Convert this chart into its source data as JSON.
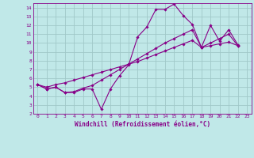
{
  "title": "",
  "xlabel": "Windchill (Refroidissement éolien,°C)",
  "ylabel": "",
  "bg_color": "#c0e8e8",
  "line_color": "#880088",
  "grid_color": "#a0c8c8",
  "xlim": [
    -0.5,
    23.5
  ],
  "ylim": [
    2,
    14.5
  ],
  "xticks": [
    0,
    1,
    2,
    3,
    4,
    5,
    6,
    7,
    8,
    9,
    10,
    11,
    12,
    13,
    14,
    15,
    16,
    17,
    18,
    19,
    20,
    21,
    22,
    23
  ],
  "yticks": [
    2,
    3,
    4,
    5,
    6,
    7,
    8,
    9,
    10,
    11,
    12,
    13,
    14
  ],
  "series": [
    [
      5.3,
      4.8,
      5.0,
      4.4,
      4.4,
      4.8,
      4.8,
      2.5,
      4.8,
      6.3,
      7.5,
      10.7,
      11.8,
      13.8,
      13.8,
      14.4,
      13.1,
      12.1,
      9.5,
      12.0,
      10.2,
      11.5,
      9.8
    ],
    [
      5.3,
      4.8,
      5.0,
      4.4,
      4.5,
      4.9,
      5.2,
      5.8,
      6.4,
      7.0,
      7.6,
      8.2,
      8.8,
      9.4,
      10.0,
      10.5,
      11.0,
      11.5,
      9.5,
      10.0,
      10.5,
      11.0,
      9.7
    ],
    [
      5.3,
      5.0,
      5.3,
      5.5,
      5.8,
      6.1,
      6.4,
      6.7,
      7.0,
      7.3,
      7.6,
      7.9,
      8.3,
      8.7,
      9.1,
      9.5,
      9.9,
      10.3,
      9.5,
      9.7,
      9.9,
      10.1,
      9.7
    ]
  ]
}
